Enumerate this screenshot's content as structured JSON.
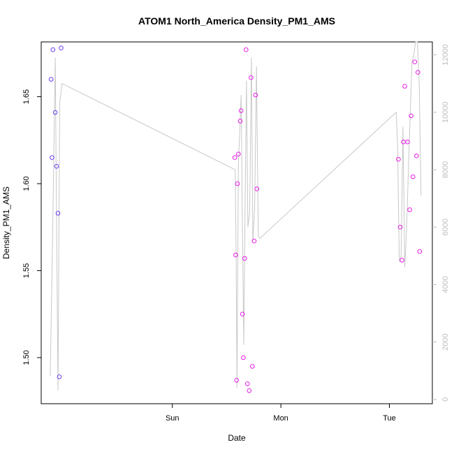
{
  "chart_data": {
    "type": "scatter",
    "title": "ATOM1 North_America Density_PM1_AMS",
    "xlabel": "Date",
    "ylabel": "Density_PM1_AMS",
    "x_ticks": [
      "Sun",
      "Mon",
      "Tue"
    ],
    "y_ticks": [
      "1.50",
      "1.55",
      "1.60",
      "1.65"
    ],
    "y2_ticks": [
      "0",
      "2000",
      "4000",
      "6000",
      "8000",
      "10000",
      "12000"
    ],
    "xlim_hours": [
      -29.0,
      57.5
    ],
    "ylim": [
      1.4735,
      1.6815
    ],
    "y2lim": [
      -150,
      12450
    ],
    "colors": {
      "points_early": "#6a3cf2",
      "points_late": "#e61ee6",
      "line": "#c8c8c8",
      "axes": "#000000",
      "right_axis": "#bdbdbd"
    },
    "points": [
      {
        "t": -26.4,
        "y": 1.677
      },
      {
        "t": -25.9,
        "y": 1.641
      },
      {
        "t": -25.3,
        "y": 1.583
      },
      {
        "t": -25.0,
        "y": 1.489
      },
      {
        "t": -25.6,
        "y": 1.61
      },
      {
        "t": -26.8,
        "y": 1.66
      },
      {
        "t": -26.6,
        "y": 1.615
      },
      {
        "t": -24.6,
        "y": 1.678
      },
      {
        "t": 13.8,
        "y": 1.615
      },
      {
        "t": 14.0,
        "y": 1.559
      },
      {
        "t": 14.2,
        "y": 1.487
      },
      {
        "t": 14.4,
        "y": 1.6
      },
      {
        "t": 14.6,
        "y": 1.617
      },
      {
        "t": 15.0,
        "y": 1.636
      },
      {
        "t": 15.2,
        "y": 1.642
      },
      {
        "t": 15.5,
        "y": 1.525
      },
      {
        "t": 15.7,
        "y": 1.5
      },
      {
        "t": 16.0,
        "y": 1.557
      },
      {
        "t": 16.3,
        "y": 1.677
      },
      {
        "t": 16.6,
        "y": 1.485
      },
      {
        "t": 17.0,
        "y": 1.481
      },
      {
        "t": 17.4,
        "y": 1.661
      },
      {
        "t": 17.7,
        "y": 1.495
      },
      {
        "t": 18.1,
        "y": 1.567
      },
      {
        "t": 18.4,
        "y": 1.651
      },
      {
        "t": 18.7,
        "y": 1.597
      },
      {
        "t": 50.0,
        "y": 1.614
      },
      {
        "t": 50.4,
        "y": 1.575
      },
      {
        "t": 50.8,
        "y": 1.556
      },
      {
        "t": 51.1,
        "y": 1.624
      },
      {
        "t": 51.4,
        "y": 1.656
      },
      {
        "t": 52.0,
        "y": 1.624
      },
      {
        "t": 52.5,
        "y": 1.585
      },
      {
        "t": 52.8,
        "y": 1.639
      },
      {
        "t": 53.2,
        "y": 1.604
      },
      {
        "t": 53.6,
        "y": 1.67
      },
      {
        "t": 54.0,
        "y": 1.616
      },
      {
        "t": 54.3,
        "y": 1.664
      },
      {
        "t": 54.7,
        "y": 1.561
      }
    ],
    "line_y2": [
      {
        "t": -27.0,
        "y2": 800
      },
      {
        "t": -26.5,
        "y2": 5500
      },
      {
        "t": -25.9,
        "y2": 11900
      },
      {
        "t": -25.3,
        "y2": 300
      },
      {
        "t": -24.9,
        "y2": 10300
      },
      {
        "t": -24.4,
        "y2": 11000
      },
      {
        "t": 13.9,
        "y2": 8000
      },
      {
        "t": 14.1,
        "y2": 5200
      },
      {
        "t": 14.3,
        "y2": 400
      },
      {
        "t": 14.6,
        "y2": 8200
      },
      {
        "t": 14.9,
        "y2": 9300
      },
      {
        "t": 15.2,
        "y2": 10600
      },
      {
        "t": 15.5,
        "y2": 6000
      },
      {
        "t": 15.8,
        "y2": 1900
      },
      {
        "t": 16.1,
        "y2": 7000
      },
      {
        "t": 16.4,
        "y2": 11100
      },
      {
        "t": 16.7,
        "y2": 6000
      },
      {
        "t": 17.1,
        "y2": 6500
      },
      {
        "t": 17.5,
        "y2": 11900
      },
      {
        "t": 17.8,
        "y2": 5500
      },
      {
        "t": 18.2,
        "y2": 6700
      },
      {
        "t": 18.6,
        "y2": 11600
      },
      {
        "t": 19.0,
        "y2": 5700
      },
      {
        "t": 19.3,
        "y2": 5600
      },
      {
        "t": 49.5,
        "y2": 10000
      },
      {
        "t": 49.8,
        "y2": 8900
      },
      {
        "t": 50.2,
        "y2": 4800
      },
      {
        "t": 50.6,
        "y2": 5000
      },
      {
        "t": 51.0,
        "y2": 9500
      },
      {
        "t": 51.4,
        "y2": 4600
      },
      {
        "t": 51.8,
        "y2": 5900
      },
      {
        "t": 52.2,
        "y2": 8000
      },
      {
        "t": 52.6,
        "y2": 9900
      },
      {
        "t": 53.0,
        "y2": 11800
      },
      {
        "t": 53.4,
        "y2": 12000
      },
      {
        "t": 53.8,
        "y2": 12450
      },
      {
        "t": 54.2,
        "y2": 12450
      },
      {
        "t": 54.6,
        "y2": 11000
      },
      {
        "t": 55.0,
        "y2": 7100
      }
    ]
  }
}
